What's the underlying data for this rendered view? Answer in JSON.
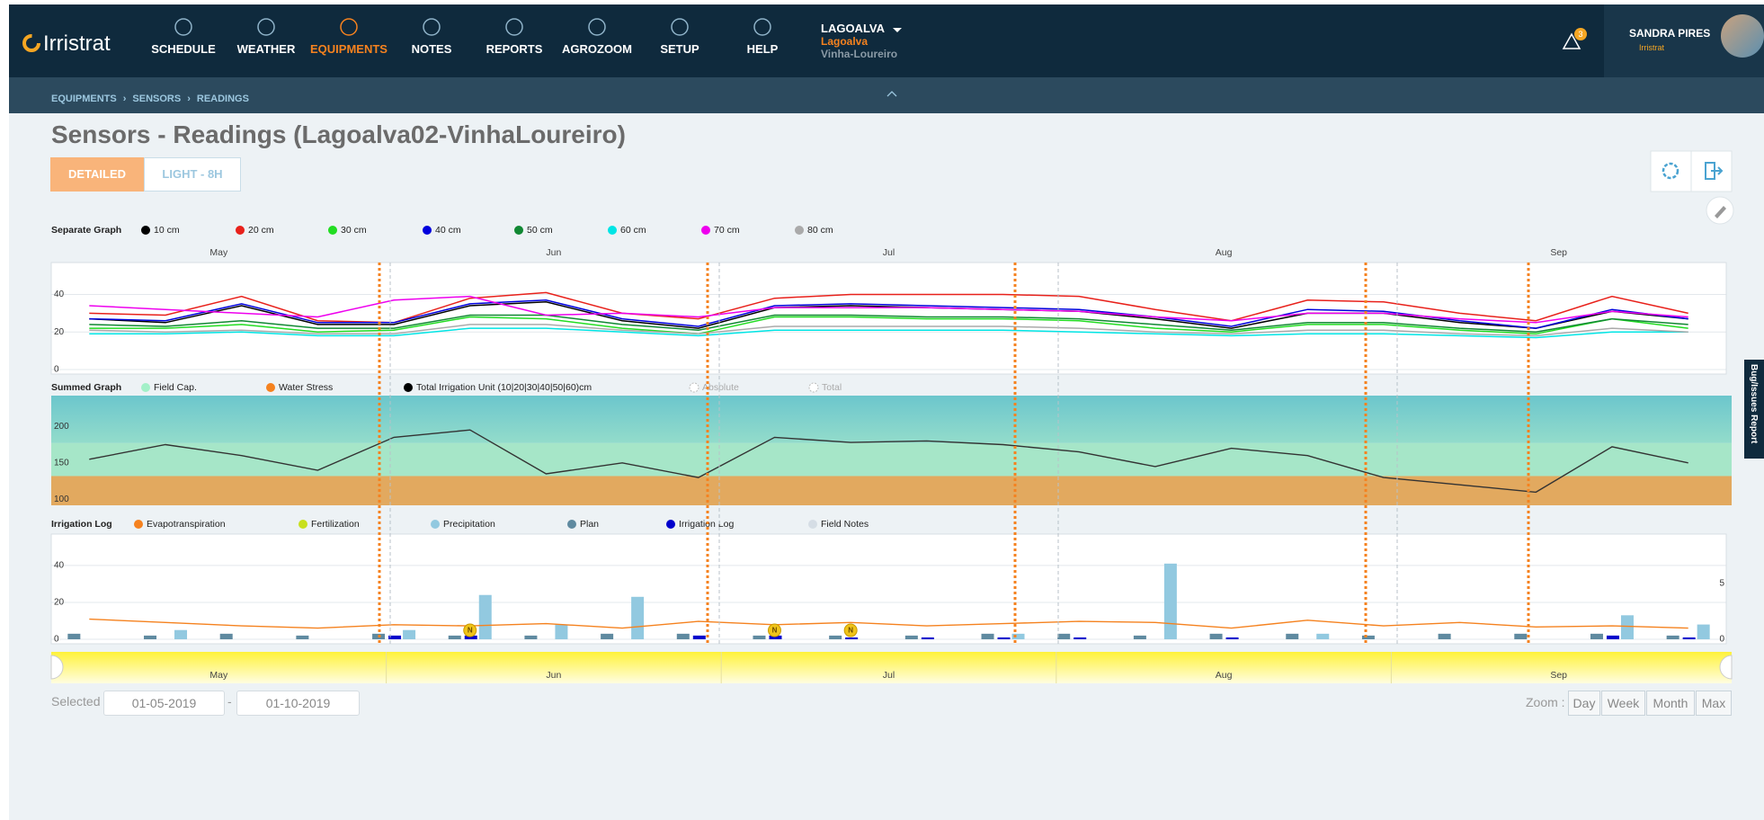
{
  "header": {
    "logo": "Irristrat",
    "nav": [
      "SCHEDULE",
      "WEATHER",
      "EQUIPMENTS",
      "NOTES",
      "REPORTS",
      "AGROZOOM",
      "SETUP",
      "HELP"
    ],
    "active_index": 2,
    "active_color": "#f5821f",
    "farm": {
      "name": "LAGOALVA",
      "client": "Lagoalva",
      "field": "Vinha-Loureiro"
    },
    "alerts": 3,
    "user": {
      "name": "SANDRA PIRES",
      "org": "Irristrat"
    }
  },
  "breadcrumb": [
    "EQUIPMENTS",
    "SENSORS",
    "READINGS"
  ],
  "title": "Sensors - Readings (Lagoalva02-VinhaLoureiro)",
  "tabs": [
    "DETAILED",
    "LIGHT - 8H"
  ],
  "side_tab": "Bug/Issues Report",
  "months": [
    "May",
    "Jun",
    "Jul",
    "Aug",
    "Sep"
  ],
  "separate_graph": {
    "type": "line",
    "label": "Separate Graph",
    "ylim": [
      0,
      57
    ],
    "yticks": [
      0,
      20,
      40
    ],
    "series": [
      {
        "name": "10 cm",
        "color": "#000000",
        "values": [
          27,
          25,
          34,
          24,
          24,
          34,
          36,
          26,
          22,
          33,
          34,
          33,
          32,
          31,
          27,
          22,
          30,
          30,
          25,
          22,
          31,
          27
        ]
      },
      {
        "name": "20 cm",
        "color": "#e8211b",
        "values": [
          30,
          29,
          39,
          26,
          25,
          38,
          41,
          30,
          27,
          38,
          40,
          40,
          40,
          39,
          32,
          26,
          37,
          36,
          30,
          26,
          39,
          30
        ]
      },
      {
        "name": "30 cm",
        "color": "#22dd22",
        "values": [
          22,
          22,
          24,
          20,
          21,
          28,
          27,
          22,
          19,
          28,
          28,
          27,
          27,
          26,
          22,
          20,
          24,
          24,
          21,
          19,
          27,
          22
        ]
      },
      {
        "name": "40 cm",
        "color": "#0000dd",
        "values": [
          27,
          26,
          35,
          25,
          25,
          35,
          37,
          27,
          23,
          34,
          35,
          34,
          33,
          32,
          28,
          23,
          32,
          31,
          26,
          22,
          32,
          27
        ]
      },
      {
        "name": "50 cm",
        "color": "#118833",
        "values": [
          24,
          23,
          26,
          22,
          22,
          29,
          29,
          24,
          21,
          29,
          29,
          28,
          28,
          27,
          24,
          21,
          25,
          25,
          22,
          20,
          27,
          24
        ]
      },
      {
        "name": "60 cm",
        "color": "#00e5e5",
        "values": [
          19,
          19,
          20,
          18,
          18,
          22,
          22,
          20,
          18,
          21,
          21,
          21,
          21,
          20,
          19,
          18,
          19,
          19,
          18,
          17,
          20,
          20
        ]
      },
      {
        "name": "70 cm",
        "color": "#ee00ee",
        "values": [
          34,
          32,
          30,
          28,
          37,
          39,
          29,
          30,
          28,
          33,
          33,
          33,
          32,
          31,
          28,
          26,
          30,
          30,
          27,
          25,
          31,
          28
        ]
      },
      {
        "name": "80 cm",
        "color": "#aaaaaa",
        "values": [
          21,
          20,
          21,
          19,
          19,
          24,
          24,
          21,
          19,
          23,
          23,
          23,
          23,
          22,
          20,
          19,
          21,
          21,
          19,
          18,
          22,
          20
        ]
      }
    ]
  },
  "summed_graph": {
    "type": "line",
    "label": "Summed Graph",
    "ylim": [
      92,
      242
    ],
    "yticks": [
      100,
      150,
      200
    ],
    "field_capacity": 177,
    "water_stress": 132,
    "legend": [
      {
        "name": "Field Cap.",
        "color": "#a3f0c8"
      },
      {
        "name": "Water Stress",
        "color": "#f5821f"
      },
      {
        "name": "Total Irrigation Unit (10|20|30|40|50|60)cm",
        "color": "#000000"
      },
      {
        "name": "Absolute",
        "color": "#bbbbbb",
        "hollow": true
      },
      {
        "name": "Total",
        "color": "#bbbbbb",
        "hollow": true
      }
    ],
    "series": [
      {
        "color": "#333333",
        "values": [
          155,
          175,
          160,
          140,
          185,
          195,
          135,
          150,
          130,
          185,
          178,
          180,
          175,
          165,
          145,
          170,
          160,
          130,
          120,
          110,
          172,
          150
        ]
      }
    ]
  },
  "irrigation_log": {
    "type": "bar",
    "label": "Irrigation Log",
    "ylim": [
      0,
      57
    ],
    "yticks": [
      0,
      20,
      40
    ],
    "y2lim": [
      0,
      9.4
    ],
    "y2ticks": [
      0,
      5
    ],
    "series": [
      {
        "name": "Evapotranspiration",
        "color": "#f5821f",
        "type": "line",
        "axis": "y2",
        "values": [
          1.8,
          1.5,
          1.2,
          1.0,
          1.3,
          1.2,
          1.4,
          1.0,
          1.6,
          1.3,
          1.5,
          1.2,
          1.4,
          1.6,
          1.5,
          1.0,
          1.7,
          1.2,
          1.5,
          1.1,
          1.2,
          1.0
        ]
      },
      {
        "name": "Fertilization",
        "color": "#c8e01e",
        "type": "marker",
        "axis": "y2",
        "marker_label": "N",
        "values": [
          null,
          null,
          null,
          null,
          null,
          0.8,
          null,
          null,
          null,
          0.8,
          0.8,
          null,
          null,
          null,
          null,
          null,
          null,
          null,
          null,
          null,
          null,
          null
        ]
      },
      {
        "name": "Precipitation",
        "color": "#92c9e0",
        "type": "bar",
        "values": [
          null,
          5,
          null,
          null,
          5,
          24,
          8,
          23,
          null,
          null,
          null,
          null,
          3,
          null,
          41,
          null,
          3,
          null,
          null,
          null,
          13,
          8
        ]
      },
      {
        "name": "Plan",
        "color": "#5f8aa0",
        "type": "bar",
        "values": [
          3,
          2,
          3,
          2,
          3,
          2,
          2,
          3,
          3,
          2,
          2,
          2,
          3,
          3,
          2,
          3,
          3,
          2,
          3,
          3,
          3,
          2
        ]
      },
      {
        "name": "Irrigation Log",
        "color": "#0000cc",
        "type": "bar",
        "values": [
          null,
          null,
          null,
          null,
          2,
          2,
          null,
          null,
          2,
          2,
          1,
          1,
          1,
          1,
          null,
          1,
          null,
          null,
          null,
          null,
          2,
          1
        ]
      },
      {
        "name": "Field Notes",
        "color": "#d5dde5",
        "type": "note"
      }
    ]
  },
  "selection": {
    "label": "Selected",
    "from": "01-05-2019",
    "range_separator": "-",
    "to": "01-10-2019"
  },
  "zoom": {
    "label": "Zoom :",
    "options": [
      "Day",
      "Week",
      "Month",
      "Max"
    ]
  }
}
